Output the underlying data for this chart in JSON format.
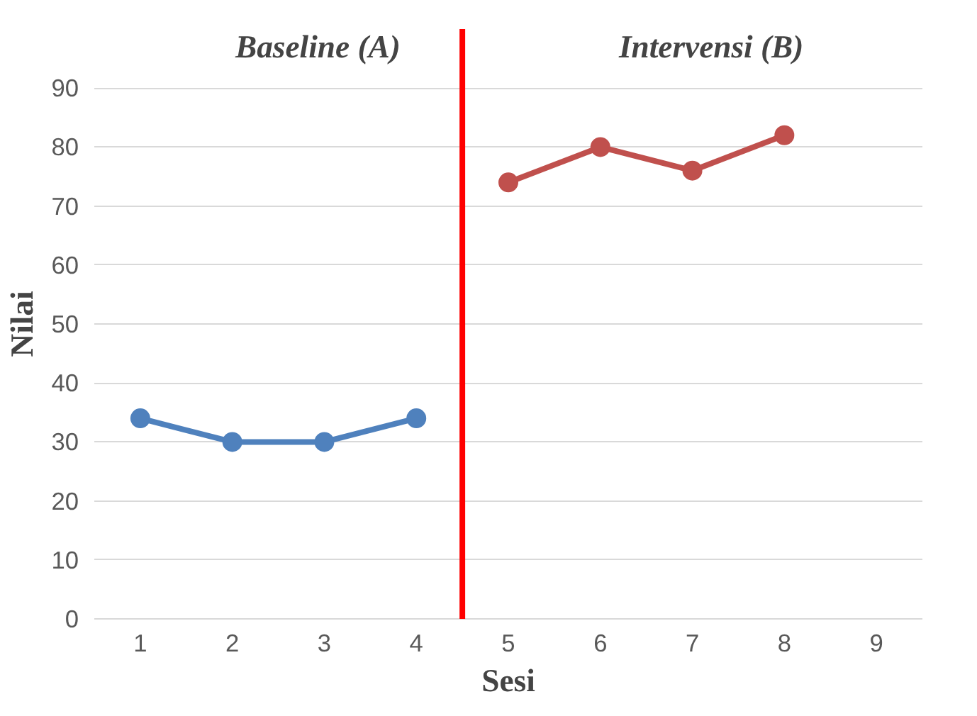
{
  "chart_data": {
    "type": "line",
    "xlabel": "Sesi",
    "ylabel": "Nilai",
    "xlim": [
      0.5,
      9.5
    ],
    "xticks": [
      1,
      2,
      3,
      4,
      5,
      6,
      7,
      8,
      9
    ],
    "ylim": [
      0,
      100
    ],
    "yticks": [
      0,
      10,
      20,
      30,
      40,
      50,
      60,
      70,
      80,
      90
    ],
    "series": [
      {
        "x": [
          1,
          2,
          3,
          4
        ],
        "values": [
          34,
          30,
          30,
          34
        ],
        "color": "#4f81bd"
      },
      {
        "x": [
          5,
          6,
          7,
          8
        ],
        "values": [
          74,
          80,
          76,
          82
        ],
        "color": "#c0504d"
      }
    ],
    "ref_lines": [
      {
        "axis": "x",
        "value": 4.5,
        "color": "#ff0000"
      }
    ],
    "annotations": [
      "Baseline (A)",
      "Intervensi (B)"
    ],
    "grid": "y",
    "marker": "circle",
    "line_style": "solid"
  }
}
